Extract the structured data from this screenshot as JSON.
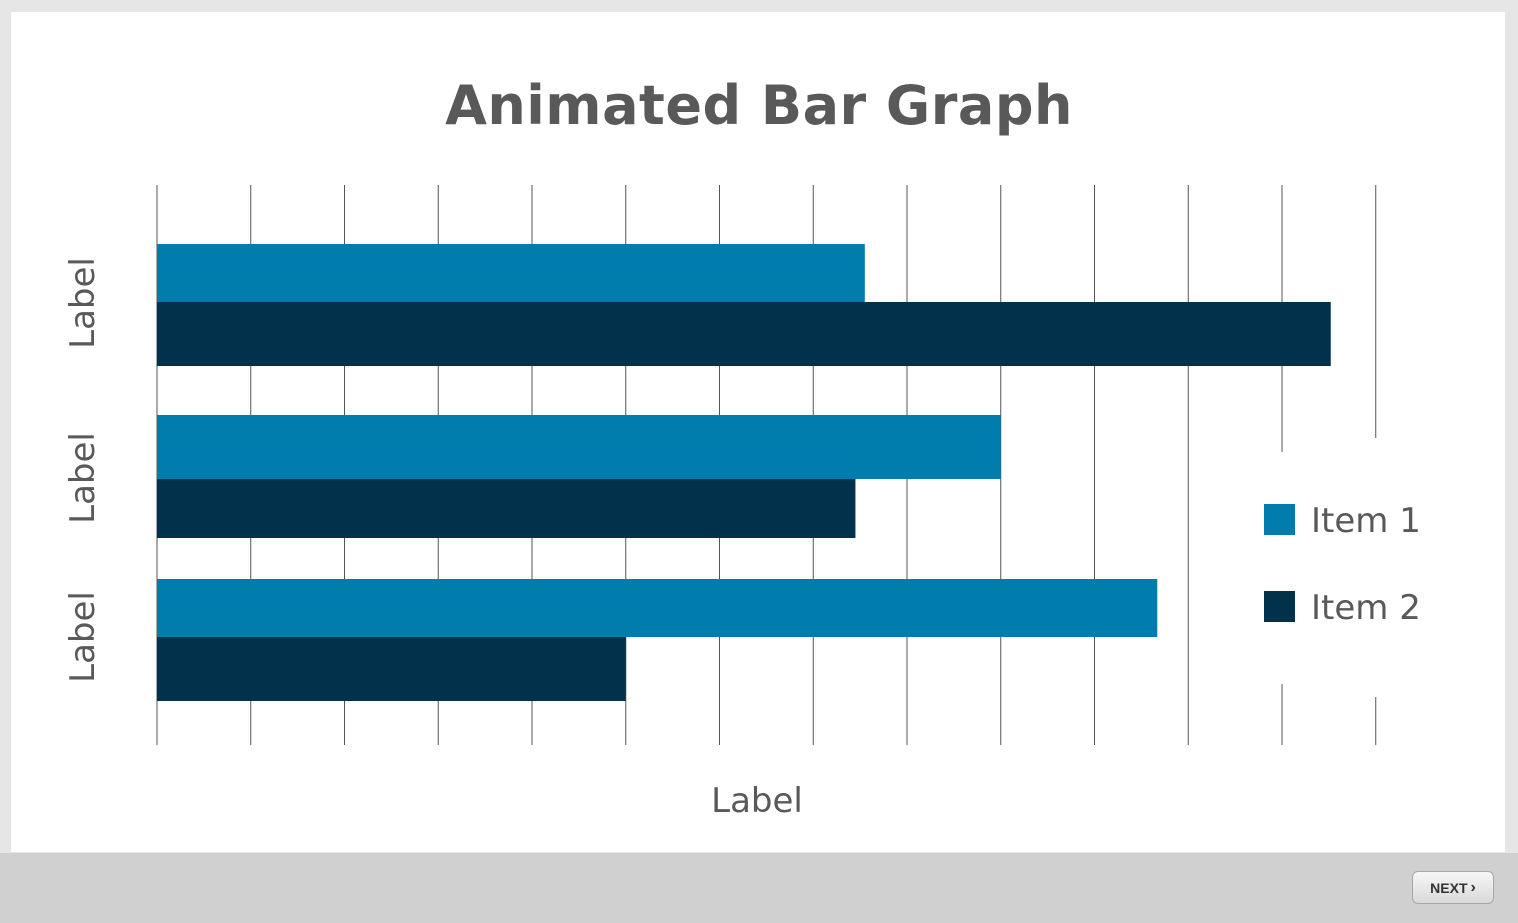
{
  "chart_data": {
    "type": "bar",
    "orientation": "horizontal",
    "title": "Animated Bar Graph",
    "categories": [
      "Label",
      "Label",
      "Label"
    ],
    "xlabel": "Label",
    "ylabel": "",
    "xlim": [
      0,
      13
    ],
    "grid": true,
    "legend": "right",
    "series": [
      {
        "name": "Item 1",
        "color": "#007dad",
        "values": [
          7.55,
          9.0,
          10.67
        ]
      },
      {
        "name": "Item 2",
        "color": "#02324b",
        "values": [
          12.52,
          7.45,
          5.0
        ]
      }
    ]
  },
  "footer": {
    "next_label": "NEXT",
    "next_icon": "chevron-right-icon"
  }
}
